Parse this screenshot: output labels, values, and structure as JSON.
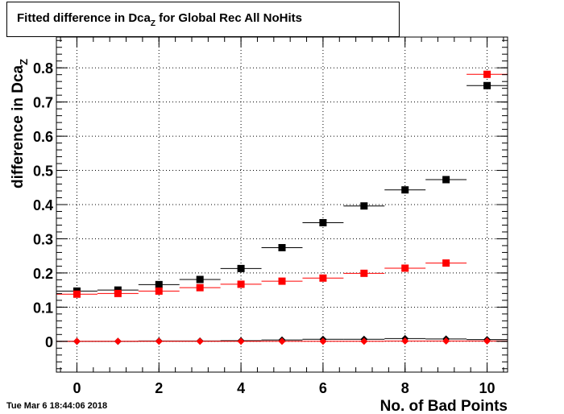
{
  "title": {
    "prefix": "Fitted difference in Dca",
    "subscript": "Z",
    "suffix": " for Global Rec All NoHits"
  },
  "timestamp": "Tue Mar  6 18:44:06 2018",
  "colors": {
    "black_series": "#000000",
    "red_series": "#ff0000",
    "grid": "#000000"
  },
  "chart_data": {
    "type": "scatter",
    "title": "Fitted difference in DcaZ for Global Rec All NoHits",
    "xlabel": "No. of Bad Points",
    "ylabel": {
      "text": "difference in Dca",
      "subscript": "Z"
    },
    "xlim": [
      -0.5,
      10.5
    ],
    "ylim": [
      -0.09,
      0.89
    ],
    "x_ticks": [
      0,
      2,
      4,
      6,
      8,
      10
    ],
    "x_tick_labels": [
      "0",
      "2",
      "4",
      "6",
      "8",
      "10"
    ],
    "y_ticks": [
      0,
      0.1,
      0.2,
      0.3,
      0.4,
      0.5,
      0.6,
      0.7,
      0.8
    ],
    "y_tick_labels": [
      "0",
      "0.1",
      "0.2",
      "0.3",
      "0.4",
      "0.5",
      "0.6",
      "0.7",
      "0.8"
    ],
    "grid": true,
    "x_error": 0.5,
    "series": [
      {
        "marker": "square",
        "color": "#000000",
        "x": [
          0,
          1,
          2,
          3,
          4,
          5,
          6,
          7,
          8,
          9,
          10
        ],
        "y": [
          0.147,
          0.15,
          0.166,
          0.181,
          0.213,
          0.274,
          0.347,
          0.396,
          0.443,
          0.473,
          0.748
        ]
      },
      {
        "marker": "square",
        "color": "#ff0000",
        "x": [
          0,
          1,
          2,
          3,
          4,
          5,
          6,
          7,
          8,
          9,
          10
        ],
        "y": [
          0.138,
          0.14,
          0.147,
          0.157,
          0.167,
          0.176,
          0.185,
          0.199,
          0.214,
          0.229,
          0.781
        ]
      },
      {
        "marker": "diamond",
        "color": "#000000",
        "x": [
          0,
          1,
          2,
          3,
          4,
          5,
          6,
          7,
          8,
          9,
          10
        ],
        "y": [
          0.0,
          0.0,
          0.001,
          0.001,
          0.002,
          0.004,
          0.006,
          0.006,
          0.008,
          0.007,
          0.005
        ]
      },
      {
        "marker": "diamond",
        "color": "#ff0000",
        "x": [
          0,
          1,
          2,
          3,
          4,
          5,
          6,
          7,
          8,
          9,
          10
        ],
        "y": [
          0.0,
          0.0,
          0.0,
          0.0,
          0.0,
          0.0,
          0.0,
          0.0,
          0.001,
          0.001,
          0.001
        ]
      }
    ]
  }
}
